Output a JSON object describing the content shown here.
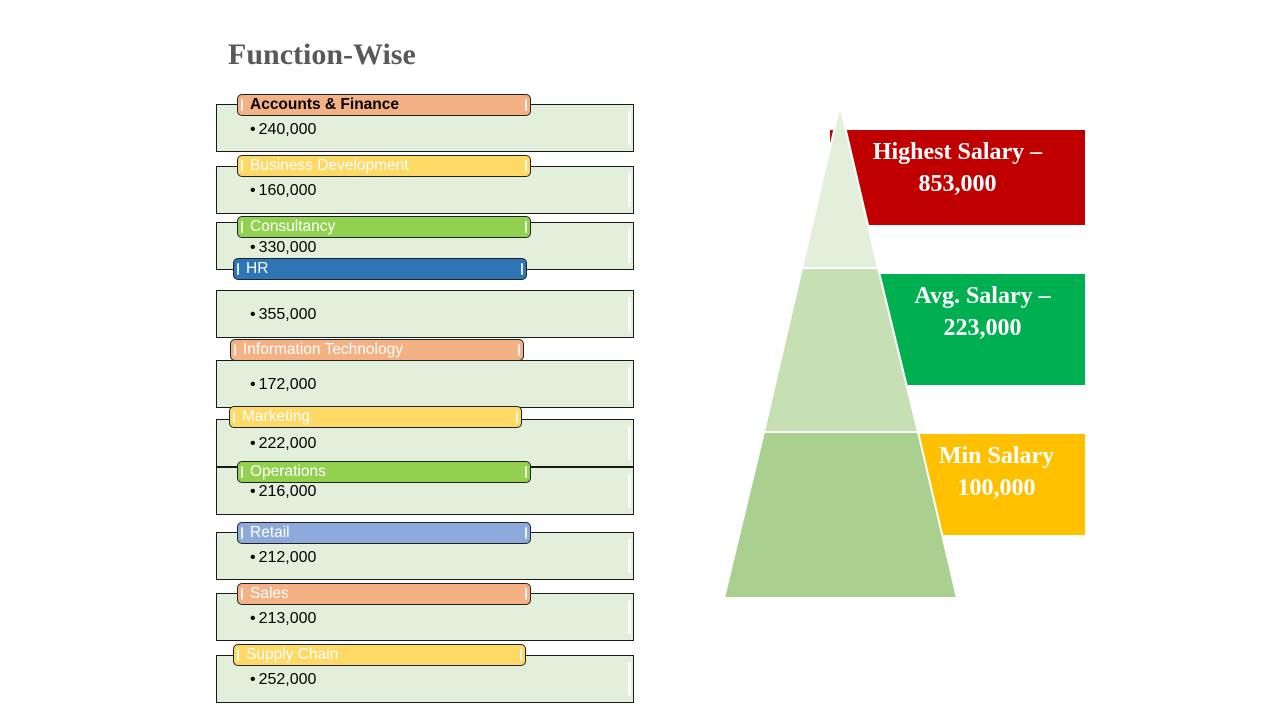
{
  "title": "Function-Wise",
  "functions": [
    {
      "label": "Accounts & Finance",
      "value": "240,000",
      "color": "#f4b183"
    },
    {
      "label": "Business Development",
      "value": "160,000",
      "color": "#ffd966"
    },
    {
      "label": "Consultancy",
      "value": "330,000",
      "color": "#92d050"
    },
    {
      "label": "HR",
      "value": "355,000",
      "color": "#2e75b6"
    },
    {
      "label": "Information Technology",
      "value": "172,000",
      "color": "#f4b183"
    },
    {
      "label": "Marketing",
      "value": "222,000",
      "color": "#ffd966"
    },
    {
      "label": "Operations",
      "value": "216,000",
      "color": "#92d050"
    },
    {
      "label": "Retail",
      "value": "212,000",
      "color": "#8ea9db"
    },
    {
      "label": "Sales",
      "value": "213,000",
      "color": "#f4b183"
    },
    {
      "label": "Supply Chain",
      "value": "252,000",
      "color": "#ffd966"
    }
  ],
  "pyramid": {
    "highest": {
      "line1": "Highest Salary –",
      "line2": "853,000",
      "color": "#c00000"
    },
    "average": {
      "line1": "Avg. Salary –",
      "line2": "223,000",
      "color": "#00b050"
    },
    "minimum": {
      "line1": "Min Salary",
      "line2": "100,000",
      "color": "#ffc000"
    },
    "tier_colors": [
      "#e2efda",
      "#c6e0b4",
      "#a9d08e"
    ]
  }
}
